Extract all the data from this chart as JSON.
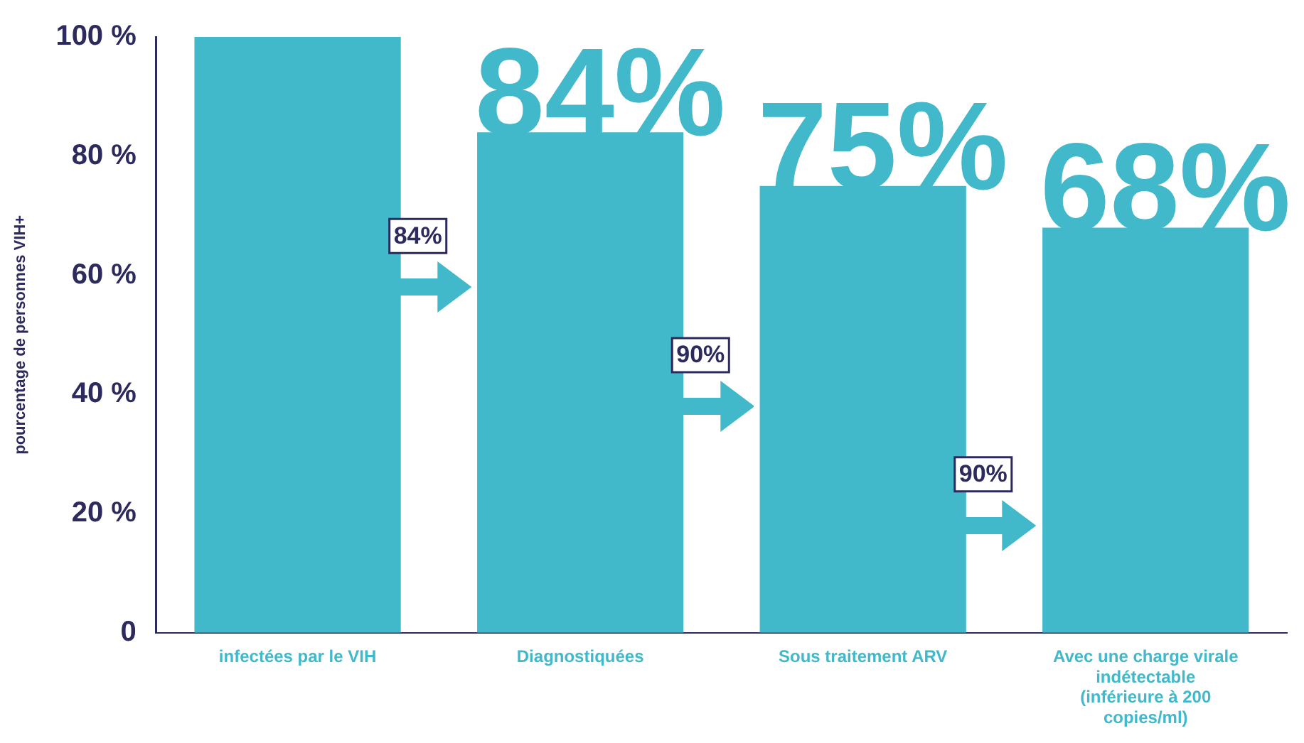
{
  "chart_data": {
    "type": "bar",
    "ylabel": "pourcentage de personnes VIH+",
    "categories": [
      "infectées par le VIH",
      "Diagnostiquées",
      "Sous traitement ARV",
      "Avec une charge virale indétectable (inférieure à 200 copies/ml)"
    ],
    "values": [
      100,
      84,
      75,
      68
    ],
    "color": "#41b9cb",
    "value_labels": [
      null,
      "84%",
      "75%",
      "68%"
    ],
    "annotations": [
      "84%",
      "90%",
      "90%"
    ],
    "ylim": [
      0,
      100
    ],
    "yticks": [
      {
        "value": 0,
        "label": "0"
      },
      {
        "value": 20,
        "label": "20 %"
      },
      {
        "value": 40,
        "label": "40 %"
      },
      {
        "value": 60,
        "label": "60 %"
      },
      {
        "value": 80,
        "label": "80 %"
      },
      {
        "value": 100,
        "label": "100 %"
      }
    ],
    "grid": false,
    "legend": false
  }
}
